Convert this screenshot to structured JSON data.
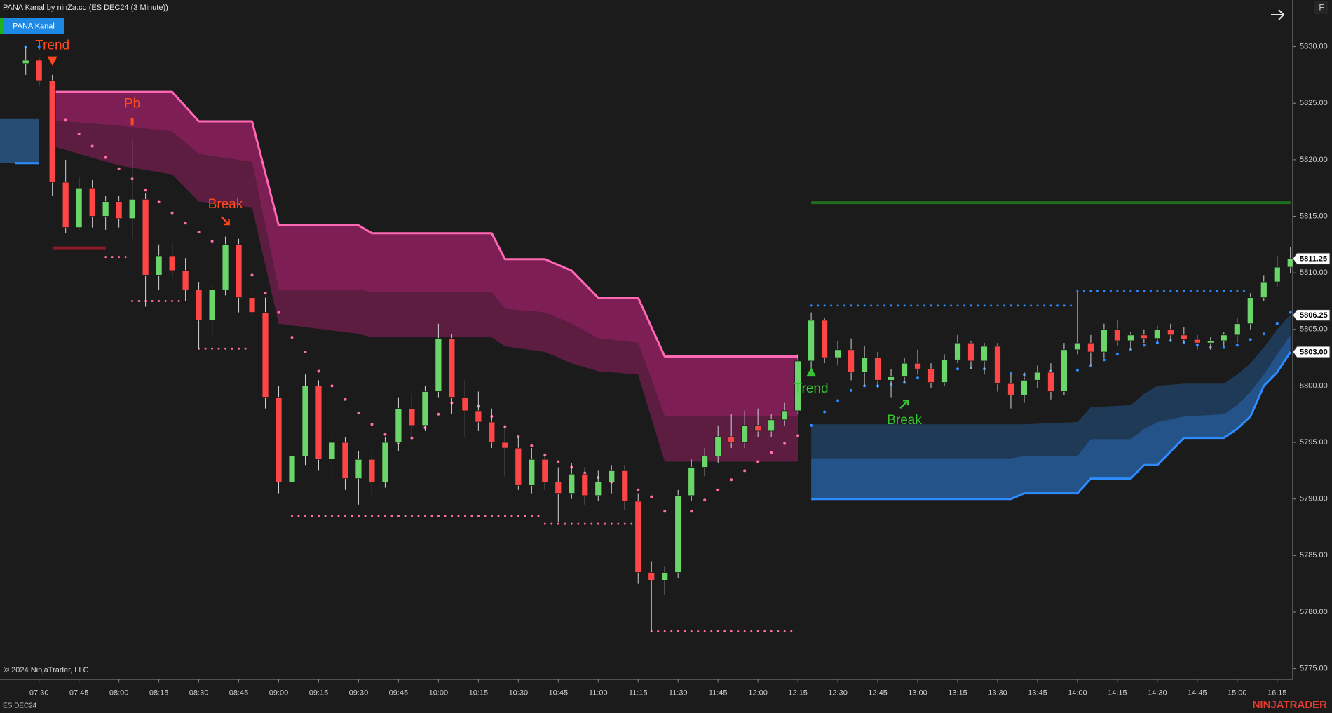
{
  "chart_data": {
    "type": "candlestick",
    "title": "PANA Kanal by ninZa.co (ES DEC24 (3 Minute))",
    "x": [
      "07:25",
      "07:30",
      "07:35",
      "07:40",
      "07:45",
      "07:50",
      "07:55",
      "08:00",
      "08:05",
      "08:10",
      "08:15",
      "08:20",
      "08:25",
      "08:30",
      "08:35",
      "08:40",
      "08:45",
      "08:50",
      "08:55",
      "09:00",
      "09:05",
      "09:10",
      "09:15",
      "09:20",
      "09:25",
      "09:30",
      "09:35",
      "09:40",
      "09:45",
      "09:50",
      "09:55",
      "10:00",
      "10:05",
      "10:10",
      "10:15",
      "10:20",
      "10:25",
      "10:30",
      "10:35",
      "10:40",
      "10:45",
      "10:50",
      "10:55",
      "11:00",
      "11:05",
      "11:10",
      "11:15",
      "11:20",
      "11:25",
      "11:30",
      "11:35",
      "11:40",
      "11:45",
      "11:50",
      "11:55",
      "12:00",
      "12:05",
      "12:10",
      "12:15",
      "12:20",
      "12:25",
      "12:30",
      "12:35",
      "12:40",
      "12:45",
      "12:50",
      "12:55",
      "13:00",
      "13:05",
      "13:10",
      "13:15",
      "13:20",
      "13:25",
      "13:30",
      "13:35",
      "13:40",
      "13:45",
      "13:50",
      "13:55",
      "14:00",
      "14:05",
      "14:10",
      "14:15",
      "14:20",
      "14:25",
      "14:30",
      "14:35",
      "14:40",
      "14:45",
      "14:50",
      "14:55",
      "15:00",
      "15:05",
      "15:10",
      "16:15",
      "16:20"
    ],
    "open": [
      5828.5,
      5828.8,
      5827,
      5818,
      5814,
      5817.5,
      5815,
      5816.3,
      5814.8,
      5816.5,
      5809.8,
      5811.5,
      5810.2,
      5808.5,
      5805.8,
      5808.5,
      5812.5,
      5807.8,
      5806.5,
      5799,
      5791.5,
      5793.8,
      5800,
      5793.5,
      5795,
      5791.8,
      5793.5,
      5791.5,
      5795,
      5798,
      5796.5,
      5799.5,
      5804.2,
      5799,
      5797.8,
      5796.8,
      5795,
      5794.5,
      5791.2,
      5793.5,
      5791.5,
      5790.5,
      5792.2,
      5790.3,
      5791.5,
      5792.5,
      5789.8,
      5783.5,
      5782.8,
      5783.5,
      5790.3,
      5792.8,
      5793.8,
      5795.5,
      5795,
      5796.5,
      5796,
      5797,
      5797.8,
      5802.2,
      5805.8,
      5802.5,
      5803.2,
      5801.2,
      5802.5,
      5800.5,
      5800.8,
      5802,
      5801.5,
      5800.3,
      5802.3,
      5803.8,
      5802.2,
      5803.5,
      5800.2,
      5799.2,
      5800.5,
      5801.2,
      5799.5,
      5803.2,
      5803.8,
      5803,
      5805,
      5804,
      5804.5,
      5804.2,
      5805,
      5804.5,
      5804.1,
      5803.8,
      5804,
      5804.5,
      5805.5,
      5807.8,
      5809.2,
      5810.5
    ],
    "high": [
      5830,
      5829,
      5827.5,
      5820,
      5818.5,
      5818.2,
      5816.8,
      5816.8,
      5821.8,
      5817,
      5812.5,
      5812.7,
      5811.3,
      5809.2,
      5809,
      5813.2,
      5813,
      5809,
      5807.8,
      5800,
      5794.5,
      5801,
      5800.5,
      5796,
      5795.5,
      5794.2,
      5794,
      5795.5,
      5799,
      5799.3,
      5800,
      5805.5,
      5804.6,
      5800.5,
      5799.5,
      5798,
      5796.5,
      5795.5,
      5794.5,
      5794,
      5792.8,
      5793.2,
      5792.8,
      5792.5,
      5793,
      5793,
      5790.5,
      5784.5,
      5784,
      5790.8,
      5793.5,
      5794.5,
      5796.5,
      5797.5,
      5797.8,
      5798,
      5797.5,
      5798.5,
      5802.8,
      5806.5,
      5806,
      5804,
      5804.2,
      5803.5,
      5803,
      5801.5,
      5802.5,
      5803.2,
      5802,
      5802.8,
      5804.5,
      5804,
      5803.8,
      5803.8,
      5801,
      5801.2,
      5801.8,
      5802,
      5803.8,
      5808.3,
      5804.5,
      5805.5,
      5805.8,
      5804.8,
      5805,
      5805.3,
      5805.5,
      5805.2,
      5804.5,
      5804.3,
      5804.8,
      5806,
      5808.2,
      5809.8,
      5811.5,
      5812.3
    ],
    "low": [
      5827.5,
      5826.5,
      5816.8,
      5813.5,
      5813.8,
      5814,
      5813.8,
      5814,
      5813,
      5807,
      5808.5,
      5809.5,
      5807.5,
      5803.3,
      5804.5,
      5808,
      5806.5,
      5805.5,
      5798,
      5790.5,
      5788.5,
      5793,
      5792.5,
      5791.8,
      5790.8,
      5789.5,
      5790.2,
      5791,
      5794.2,
      5795.5,
      5796,
      5799,
      5797.5,
      5795.5,
      5796,
      5794.5,
      5792,
      5790.8,
      5790.5,
      5790.8,
      5788,
      5790,
      5789.5,
      5789.8,
      5790.5,
      5789,
      5782.5,
      5778.2,
      5781.5,
      5783,
      5789.8,
      5792,
      5793.2,
      5794.5,
      5794.5,
      5795.5,
      5795.5,
      5796.5,
      5797.5,
      5801.5,
      5802,
      5801.8,
      5800.5,
      5800,
      5799.8,
      5799,
      5800.3,
      5801,
      5799.8,
      5800,
      5802,
      5801.5,
      5801,
      5799.5,
      5798,
      5798.5,
      5799.8,
      5798.8,
      5799.2,
      5802.8,
      5801.8,
      5802.5,
      5803.5,
      5803.2,
      5803.8,
      5803.8,
      5804,
      5803.8,
      5803.2,
      5803.2,
      5803.5,
      5803.8,
      5805,
      5807.5,
      5808.8,
      5810
    ],
    "close": [
      5828.8,
      5827,
      5818,
      5814,
      5817.5,
      5815,
      5816.3,
      5814.8,
      5816.5,
      5809.8,
      5811.5,
      5810.2,
      5808.5,
      5805.8,
      5808.5,
      5812.5,
      5807.8,
      5806.5,
      5799,
      5791.5,
      5793.8,
      5800,
      5793.5,
      5795,
      5791.8,
      5793.5,
      5791.5,
      5795,
      5798,
      5796.5,
      5799.5,
      5804.2,
      5799,
      5797.8,
      5796.8,
      5795,
      5794.5,
      5791.2,
      5793.5,
      5791.5,
      5790.5,
      5792.2,
      5790.3,
      5791.5,
      5792.5,
      5789.8,
      5783.5,
      5782.8,
      5783.5,
      5790.3,
      5792.8,
      5793.8,
      5795.5,
      5795,
      5796.5,
      5796,
      5797,
      5797.8,
      5802.2,
      5805.8,
      5802.5,
      5803.2,
      5801.2,
      5802.5,
      5800.5,
      5800.8,
      5802,
      5801.5,
      5800.3,
      5802.3,
      5803.8,
      5802.2,
      5803.5,
      5800.2,
      5799.2,
      5800.5,
      5801.2,
      5799.5,
      5803.2,
      5803.8,
      5803,
      5805,
      5804,
      5804.5,
      5804.2,
      5805,
      5804.5,
      5804.1,
      5803.8,
      5804,
      5804.5,
      5805.5,
      5807.8,
      5809.2,
      5810.5,
      5811.25
    ],
    "up_color": "#6ad66a",
    "down_color": "#ff4545",
    "wick_color": "#d2d2d2",
    "ylim": [
      5774.02,
      5834.13
    ],
    "yticks": [
      {
        "value": 5775,
        "label": "5775.00"
      },
      {
        "value": 5780,
        "label": "5780.00"
      },
      {
        "value": 5785,
        "label": "5785.00"
      },
      {
        "value": 5790,
        "label": "5790.00"
      },
      {
        "value": 5795,
        "label": "5795.00"
      },
      {
        "value": 5800,
        "label": "5800.00"
      },
      {
        "value": 5805,
        "label": "5805.00"
      },
      {
        "value": 5810,
        "label": "5810.00"
      },
      {
        "value": 5815,
        "label": "5815.00"
      },
      {
        "value": 5820,
        "label": "5820.00"
      },
      {
        "value": 5825,
        "label": "5825.00"
      },
      {
        "value": 5830,
        "label": "5830.00"
      }
    ],
    "xticks": [
      "07:30",
      "07:45",
      "08:00",
      "08:15",
      "08:30",
      "08:45",
      "09:00",
      "09:15",
      "09:30",
      "09:45",
      "10:00",
      "10:15",
      "10:30",
      "10:45",
      "11:00",
      "11:15",
      "11:30",
      "11:45",
      "12:00",
      "12:15",
      "12:30",
      "12:45",
      "13:00",
      "13:15",
      "13:30",
      "13:45",
      "14:00",
      "14:15",
      "14:30",
      "14:45",
      "15:00",
      "16:15"
    ],
    "zone": {
      "to": "07:30",
      "top": 5823.6,
      "bottom": 5819.7,
      "color": "#2a5a8c",
      "line_color": "#2d8cff"
    },
    "bands": [
      {
        "x": [
          "07:35",
          "08:00",
          "08:20",
          "08:30",
          "08:50",
          "09:00",
          "09:30",
          "09:35",
          "10:20",
          "10:25",
          "10:40",
          "10:50",
          "11:00",
          "11:15",
          "11:25",
          "12:15"
        ],
        "upper": [
          5826,
          5826,
          5826,
          5823.4,
          5823.4,
          5814.2,
          5814.2,
          5813.5,
          5813.5,
          5811.2,
          5811.2,
          5810.2,
          5807.8,
          5807.8,
          5802.6,
          5802.6
        ],
        "middle": [
          5823.5,
          5823,
          5822.5,
          5820.5,
          5819.8,
          5808.5,
          5808.5,
          5808.3,
          5808.3,
          5806.8,
          5806.5,
          5805.5,
          5804.2,
          5803.8,
          5797.3,
          5797.3
        ],
        "lower": [
          5821.2,
          5819.5,
          5818.7,
          5816.3,
          5815.8,
          5805.5,
          5804.6,
          5804.3,
          5804.3,
          5803.5,
          5803,
          5802,
          5801.3,
          5801,
          5793.3,
          5793.3
        ],
        "colors": [
          "#7d1f55",
          "#5c1d41"
        ],
        "edge": "upper",
        "line_color": "#ff69b4"
      },
      {
        "x": [
          "12:20",
          "13:35",
          "13:40",
          "14:00",
          "14:05",
          "14:20",
          "14:25",
          "14:30",
          "14:40",
          "14:55",
          "15:00",
          "15:05",
          "15:10",
          "16:15",
          "16:20"
        ],
        "upper": [
          5796.6,
          5796.6,
          5796.6,
          5796.8,
          5798.1,
          5798.3,
          5799.3,
          5800,
          5800.2,
          5800.2,
          5801,
          5802,
          5803.4,
          5805,
          5806.3
        ],
        "middle": [
          5793.6,
          5793.6,
          5793.8,
          5793.8,
          5795.3,
          5795.3,
          5796.2,
          5796.8,
          5797.3,
          5797.5,
          5798.3,
          5799.5,
          5801,
          5802.8,
          5804.5
        ],
        "lower": [
          5790,
          5790,
          5790.5,
          5790.5,
          5791.8,
          5791.8,
          5793,
          5793,
          5795.4,
          5795.4,
          5796.2,
          5797.3,
          5800,
          5801.2,
          5803
        ],
        "colors": [
          "#1f3a57",
          "#24538a"
        ],
        "edge": "lower",
        "line_color": "#2d8cff"
      }
    ],
    "trails": [
      {
        "color": "#ff6fa8",
        "x": [
          "07:35",
          "07:40",
          "07:45",
          "07:50",
          "07:55",
          "08:00",
          "08:05",
          "08:10",
          "08:15",
          "08:20",
          "08:25",
          "08:30",
          "08:35",
          "08:40",
          "08:45",
          "08:50",
          "08:55",
          "09:00",
          "09:05",
          "09:10",
          "09:15",
          "09:20",
          "09:25",
          "09:30",
          "09:35",
          "09:40",
          "09:45",
          "09:50",
          "09:55",
          "10:00",
          "10:05",
          "10:10",
          "10:15",
          "10:20",
          "10:25",
          "10:30",
          "10:35",
          "10:40",
          "10:45",
          "10:50",
          "10:55",
          "11:00",
          "11:05",
          "11:10",
          "11:15",
          "11:20",
          "11:25",
          "11:30",
          "11:35",
          "11:40",
          "11:45",
          "11:50",
          "11:55",
          "12:00",
          "12:05",
          "12:10",
          "12:15"
        ],
        "values": [
          5824.7,
          5823.5,
          5822.3,
          5821.2,
          5820.2,
          5819.2,
          5818.3,
          5817.3,
          5816.3,
          5815.3,
          5814.4,
          5813.6,
          5812.8,
          5811.8,
          5810.8,
          5809.8,
          5808.2,
          5806.5,
          5804.3,
          5803,
          5801.3,
          5800,
          5798.8,
          5797.6,
          5796.6,
          5795.7,
          5795,
          5795.4,
          5796.3,
          5797.5,
          5798.5,
          5798.8,
          5798.2,
          5797.3,
          5796.4,
          5795.5,
          5794.7,
          5793.9,
          5793.3,
          5792.8,
          5792.3,
          5791.9,
          5791.5,
          5791.2,
          5790.8,
          5790.2,
          5788.9,
          5788,
          5788.9,
          5789.9,
          5790.8,
          5791.7,
          5792.5,
          5793.3,
          5794.1,
          5794.9,
          5795.6
        ]
      },
      {
        "color": "#2d8cff",
        "x": [
          "07:25",
          "07:30",
          "12:20",
          "12:25",
          "12:30",
          "12:35",
          "12:40",
          "12:45",
          "12:50",
          "12:55",
          "13:00",
          "13:05",
          "13:10",
          "13:15",
          "13:20",
          "13:25",
          "13:30",
          "13:35",
          "13:40",
          "13:45",
          "13:50",
          "13:55",
          "14:00",
          "14:05",
          "14:10",
          "14:15",
          "14:20",
          "14:25",
          "14:30",
          "14:35",
          "14:40",
          "14:45",
          "14:50",
          "14:55",
          "15:00",
          "15:05",
          "15:10",
          "16:15",
          "16:20"
        ],
        "values": [
          5830,
          5830,
          5796.5,
          5797.7,
          5798.7,
          5799.6,
          5800,
          5800,
          5800.1,
          5800.3,
          5800.7,
          5801,
          5801.3,
          5801.5,
          5801.6,
          5801.5,
          5801.2,
          5801.1,
          5801,
          5801,
          5801.3,
          5801.6,
          5801.4,
          5801.8,
          5802.3,
          5802.8,
          5803.2,
          5803.6,
          5803.8,
          5804,
          5803.8,
          5803.6,
          5803.4,
          5803.4,
          5803.6,
          5804.1,
          5804.6,
          5805.5,
          5806.5
        ]
      }
    ],
    "levels": [
      {
        "from": "07:55",
        "to": "08:05",
        "value": 5811.4,
        "color": "#ff6fa8",
        "style": "dotted"
      },
      {
        "from": "08:05",
        "to": "08:25",
        "value": 5807.5,
        "color": "#ff6fa8",
        "style": "dotted"
      },
      {
        "from": "08:30",
        "to": "08:50",
        "value": 5803.3,
        "color": "#ff6fa8",
        "style": "dotted"
      },
      {
        "from": "09:05",
        "to": "10:40",
        "value": 5788.5,
        "color": "#ff6fa8",
        "style": "dotted"
      },
      {
        "from": "10:40",
        "to": "11:15",
        "value": 5787.8,
        "color": "#ff6fa8",
        "style": "dotted"
      },
      {
        "from": "11:20",
        "to": "12:15",
        "value": 5778.3,
        "color": "#ff6fa8",
        "style": "dotted"
      },
      {
        "from": "12:20",
        "to": "14:00",
        "value": 5807.1,
        "color": "#2d8cff",
        "style": "dotted"
      },
      {
        "from": "14:00",
        "to": "15:05",
        "value": 5808.4,
        "color": "#2d8cff",
        "style": "dotted"
      },
      {
        "from": "07:35",
        "to": "07:55",
        "value": 5812.2,
        "color": "#8b1a2a",
        "style": "solid"
      },
      {
        "from": "12:20",
        "to": "16:20",
        "value": 5816.2,
        "color": "#1f6e1f",
        "style": "solid"
      }
    ],
    "signals": [
      {
        "label": "Trend",
        "x": "07:35",
        "value": 5828.7,
        "color": "#ff4a1c",
        "marker": "triangle-down"
      },
      {
        "label": "Pb",
        "x": "08:05",
        "value": 5823.2,
        "color": "#ff4a1c",
        "marker": "bar"
      },
      {
        "label": "Break",
        "x": "08:40",
        "value": 5814.6,
        "color": "#ff4a1c",
        "marker": "arrow-down"
      },
      {
        "label": "Trend",
        "x": "12:20",
        "value": 5801.2,
        "color": "#33c633",
        "marker": "triangle-up"
      },
      {
        "label": "Break",
        "x": "12:55",
        "value": 5798.4,
        "color": "#33c633",
        "marker": "arrow-up"
      }
    ],
    "price_tags": [
      5811.25,
      5806.25,
      {
        "value": 5803,
        "label": "5803.00"
      }
    ]
  },
  "page": {
    "indicator_button": "PANA Kanal",
    "corner_button": "F",
    "copyright": "© 2024 NinjaTrader, LLC",
    "instrument": "ES DEC24",
    "logo": "NINJATRADER"
  }
}
